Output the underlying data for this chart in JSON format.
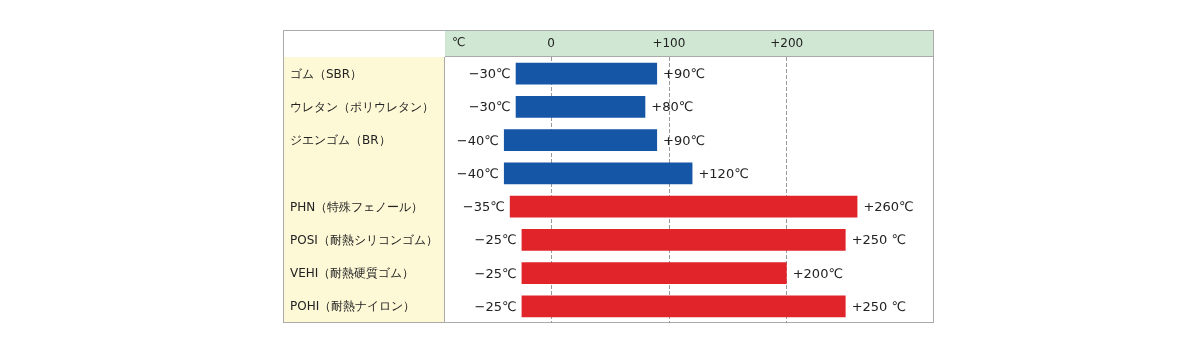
{
  "chart_data": {
    "type": "bar",
    "orientation": "horizontal",
    "xlabel": "℃",
    "categories": [
      "ゴム（SBR）",
      "ウレタン（ポリウレタン）",
      "ジエンゴム（BR）",
      null,
      "PHN（特殊フェノール）",
      "POSI（耐熱シリコンゴム）",
      "VEHI（耐熱硬質ゴム）",
      "POHI（耐熱ナイロン）"
    ],
    "base": [
      -30,
      -30,
      -40,
      -40,
      -35,
      -25,
      -25,
      -25
    ],
    "values": [
      120,
      110,
      130,
      160,
      295,
      275,
      225,
      275
    ],
    "colors": [
      "#1656a6",
      "#1656a6",
      "#1656a6",
      "#1656a6",
      "#e0242a",
      "#e0242a",
      "#e0242a",
      "#e0242a"
    ],
    "xlim": [
      -90,
      325
    ],
    "xticks": [
      0,
      {
        "value": 100,
        "label": "+100"
      },
      {
        "value": 200,
        "label": "+200"
      }
    ],
    "grid": "x",
    "annotations": [
      {
        "text": "−30℃",
        "x": -30,
        "y": "ゴム（SBR）"
      },
      {
        "text": "+90℃",
        "x": 90,
        "y": "ゴム（SBR）"
      },
      {
        "text": "−30℃",
        "x": -30,
        "y": "ウレタン（ポリウレタン）"
      },
      {
        "text": "+80℃",
        "x": 80,
        "y": "ウレタン（ポリウレタン）"
      },
      {
        "text": "−40℃",
        "x": -40,
        "y": "ジエンゴム（BR）"
      },
      {
        "text": "+90℃",
        "x": 90,
        "y": "ジエンゴム（BR）"
      },
      {
        "text": "−40℃",
        "x": -40
      },
      {
        "text": "+120℃",
        "x": 120
      },
      {
        "text": "−35℃",
        "x": -35,
        "y": "PHN（特殊フェノール）"
      },
      {
        "text": "+260℃",
        "x": 260,
        "y": "PHN（特殊フェノール）"
      },
      {
        "text": "−25℃",
        "x": -25,
        "y": "POSI（耐熱シリコンゴム）"
      },
      {
        "text": "+250 ℃",
        "x": 250,
        "y": "POSI（耐熱シリコンゴム）"
      },
      {
        "text": "−25℃",
        "x": -25,
        "y": "VEHI（耐熱硬質ゴム）"
      },
      {
        "text": "+200℃",
        "x": 200,
        "y": "VEHI（耐熱硬質ゴム）"
      },
      {
        "text": "−25℃",
        "x": -25,
        "y": "POHI（耐熱ナイロン）"
      },
      {
        "text": "+250 ℃",
        "x": 250,
        "y": "POHI（耐熱ナイロン）"
      }
    ]
  }
}
